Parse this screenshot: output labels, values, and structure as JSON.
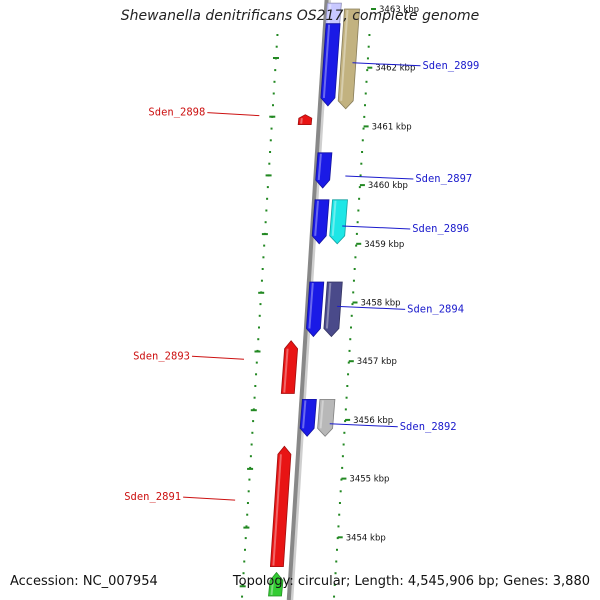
{
  "title": "Shewanella denitrificans OS217, complete genome",
  "footer": {
    "accession": "Accession: NC_007954",
    "summary": "Topology: circular; Length: 4,545,906 bp; Genes: 3,880"
  },
  "colors": {
    "forward_label": "#1a1acc",
    "reverse_label": "#cc1111",
    "tick": "#228822",
    "backbone": "#888888"
  },
  "ticks": [
    {
      "kbp": 3463,
      "label": "3463 kbp"
    },
    {
      "kbp": 3462,
      "label": "3462 kbp"
    },
    {
      "kbp": 3461,
      "label": "3461 kbp"
    },
    {
      "kbp": 3460,
      "label": "3460 kbp"
    },
    {
      "kbp": 3459,
      "label": "3459 kbp"
    },
    {
      "kbp": 3458,
      "label": "3458 kbp"
    },
    {
      "kbp": 3457,
      "label": "3457 kbp"
    },
    {
      "kbp": 3456,
      "label": "3456 kbp"
    },
    {
      "kbp": 3455,
      "label": "3455 kbp"
    },
    {
      "kbp": 3454,
      "label": "3454 kbp"
    }
  ],
  "labels": [
    {
      "name": "Sden_2899",
      "strand": "forward",
      "kbp": 3462.05
    },
    {
      "name": "Sden_2898",
      "strand": "reverse",
      "kbp": 3461.2
    },
    {
      "name": "Sden_2897",
      "strand": "forward",
      "kbp": 3460.12
    },
    {
      "name": "Sden_2896",
      "strand": "forward",
      "kbp": 3459.27
    },
    {
      "name": "Sden_2894",
      "strand": "forward",
      "kbp": 3457.9
    },
    {
      "name": "Sden_2893",
      "strand": "reverse",
      "kbp": 3457.05
    },
    {
      "name": "Sden_2892",
      "strand": "forward",
      "kbp": 3455.9
    },
    {
      "name": "Sden_2891",
      "strand": "reverse",
      "kbp": 3454.65
    }
  ],
  "features": [
    {
      "track": "fwd",
      "start": 3463.1,
      "end": 3462.55,
      "color": "#c8c8ff"
    },
    {
      "track": "fwd",
      "start": 3462.75,
      "end": 3461.35,
      "color": "#1a1ae6"
    },
    {
      "track": "fwd2",
      "start": 3463.0,
      "end": 3461.3,
      "color": "#c2b280"
    },
    {
      "track": "rev",
      "start": 3461.03,
      "end": 3461.2,
      "color": "#e81414"
    },
    {
      "track": "fwd",
      "start": 3460.55,
      "end": 3459.95,
      "color": "#1a1ae6"
    },
    {
      "track": "fwd",
      "start": 3459.75,
      "end": 3459.0,
      "color": "#1a1ae6"
    },
    {
      "track": "fwd2",
      "start": 3459.75,
      "end": 3459.0,
      "color": "#1ee6e6"
    },
    {
      "track": "fwd",
      "start": 3458.35,
      "end": 3457.42,
      "color": "#1a1ae6"
    },
    {
      "track": "fwd2",
      "start": 3458.35,
      "end": 3457.42,
      "color": "#4a4a8a"
    },
    {
      "track": "rev",
      "start": 3456.45,
      "end": 3457.35,
      "color": "#e81414"
    },
    {
      "track": "fwd",
      "start": 3456.35,
      "end": 3455.72,
      "color": "#1a1ae6"
    },
    {
      "track": "fwd2",
      "start": 3456.35,
      "end": 3455.72,
      "color": "#b8b8b8"
    },
    {
      "track": "rev",
      "start": 3453.5,
      "end": 3455.55,
      "color": "#e81414"
    },
    {
      "track": "rev",
      "start": 3453.0,
      "end": 3453.4,
      "color": "#33cc33"
    }
  ]
}
